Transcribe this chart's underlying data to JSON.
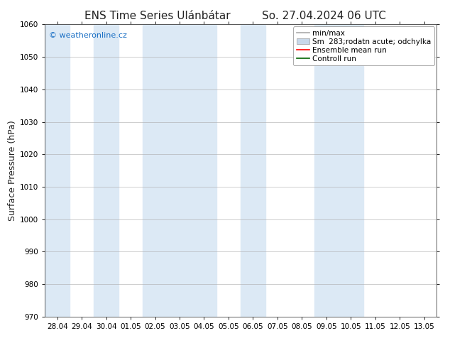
{
  "title_left": "ENS Time Series Ulánbátar",
  "title_right": "So. 27.04.2024 06 UTC",
  "ylabel": "Surface Pressure (hPa)",
  "watermark": "© weatheronline.cz",
  "watermark_color": "#1a6fc4",
  "ylim": [
    970,
    1060
  ],
  "yticks": [
    970,
    980,
    990,
    1000,
    1010,
    1020,
    1030,
    1040,
    1050,
    1060
  ],
  "x_labels": [
    "28.04",
    "29.04",
    "30.04",
    "01.05",
    "02.05",
    "03.05",
    "04.05",
    "05.05",
    "06.05",
    "07.05",
    "08.05",
    "09.05",
    "10.05",
    "11.05",
    "12.05",
    "13.05"
  ],
  "shade_color": "#dce9f5",
  "background_color": "#ffffff",
  "grid_color": "#aaaaaa",
  "legend_entries": [
    {
      "label": "min/max",
      "color": "#aaaaaa",
      "type": "line"
    },
    {
      "label": "Sm  283;rodatn acute; odchylka",
      "color": "#c8d8ea",
      "type": "patch"
    },
    {
      "label": "Ensemble mean run",
      "color": "#ff0000",
      "type": "line"
    },
    {
      "label": "Controll run",
      "color": "#006400",
      "type": "line"
    }
  ],
  "title_fontsize": 11,
  "tick_fontsize": 7.5,
  "ylabel_fontsize": 9,
  "legend_fontsize": 7.5
}
